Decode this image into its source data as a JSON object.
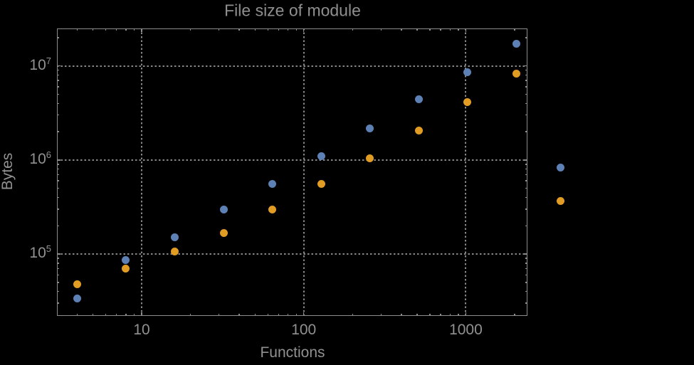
{
  "colors": {
    "background": "#000000",
    "frame": "#8c8c8c",
    "gridline": "#868686",
    "label_text": "#919191",
    "series_blue": "#5e81b5",
    "series_orange": "#e19c24"
  },
  "chart_data": {
    "type": "scatter",
    "title": "File size of module",
    "xlabel": "Functions",
    "ylabel": "Bytes",
    "x_scale": "log",
    "y_scale": "log",
    "xlim": [
      3,
      2400
    ],
    "ylim": [
      22000,
      25000000
    ],
    "grid": "dotted gridlines at decade ticks, frame on all four sides with mirrored log minor ticks",
    "legend": "none",
    "x_major_ticks": [
      10,
      100,
      1000
    ],
    "x_major_tick_labels": [
      "10",
      "100",
      "1000"
    ],
    "y_major_ticks": [
      100000,
      1000000,
      10000000
    ],
    "y_major_tick_mantissa": "10",
    "y_major_tick_exponents": [
      "5",
      "6",
      "7"
    ],
    "x": [
      4,
      8,
      16,
      32,
      64,
      128,
      256,
      512,
      1024,
      2048,
      3860
    ],
    "series": [
      {
        "name": "series-blue",
        "color": "#5e81b5",
        "values": [
          34000,
          87000,
          152000,
          295000,
          560000,
          1100000,
          2180000,
          4400000,
          8600000,
          17200000,
          830000
        ]
      },
      {
        "name": "series-orange",
        "color": "#e19c24",
        "values": [
          48000,
          70000,
          107000,
          168000,
          295000,
          560000,
          1040000,
          2070000,
          4150000,
          8300000,
          365000
        ]
      }
    ],
    "note": "last data pair (x≈3860) is plotted outside the right frame edge"
  }
}
